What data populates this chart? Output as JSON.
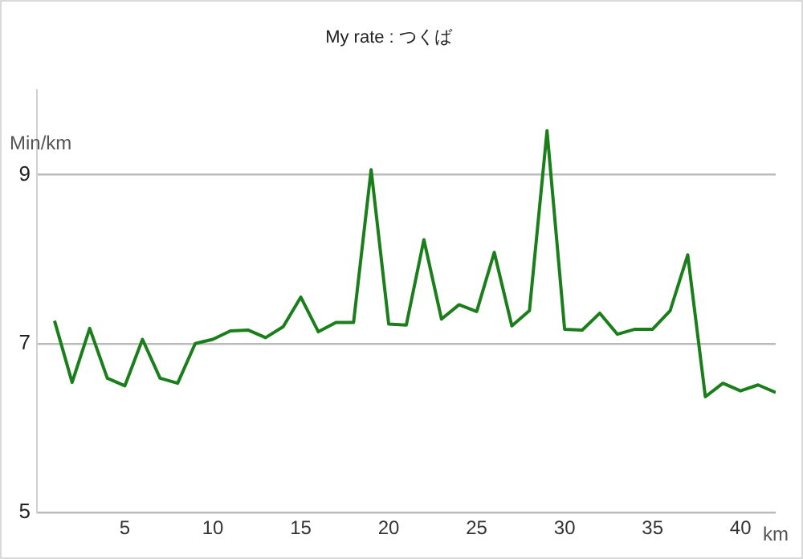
{
  "chart_data": {
    "type": "line",
    "title": "My rate : つくば",
    "xlabel": "km",
    "ylabel": "Min/km",
    "x": [
      1,
      2,
      3,
      4,
      5,
      6,
      7,
      8,
      9,
      10,
      11,
      12,
      13,
      14,
      15,
      16,
      17,
      18,
      19,
      20,
      21,
      22,
      23,
      24,
      25,
      26,
      27,
      28,
      29,
      30,
      31,
      32,
      33,
      34,
      35,
      36,
      37,
      38,
      39,
      40,
      41,
      42
    ],
    "series": [
      {
        "color": "#1a7f1a",
        "values": [
          7.27,
          6.54,
          7.18,
          6.59,
          6.5,
          7.05,
          6.59,
          6.53,
          7.0,
          7.05,
          7.15,
          7.16,
          7.07,
          7.2,
          7.55,
          7.14,
          7.25,
          7.25,
          9.06,
          7.23,
          7.22,
          8.23,
          7.29,
          7.46,
          7.38,
          8.08,
          7.21,
          7.39,
          9.52,
          7.17,
          7.16,
          7.36,
          7.11,
          7.17,
          7.17,
          7.39,
          8.05,
          6.37,
          6.53,
          6.44,
          6.51,
          6.42
        ]
      }
    ],
    "xlim": [
      0,
      42
    ],
    "xticks": [
      5,
      10,
      15,
      20,
      25,
      30,
      35,
      40
    ],
    "ylim": [
      5,
      10
    ],
    "yticks": [
      5,
      7,
      9
    ],
    "grid": "y",
    "legend": false,
    "marker": "none",
    "line_style": "solid"
  }
}
